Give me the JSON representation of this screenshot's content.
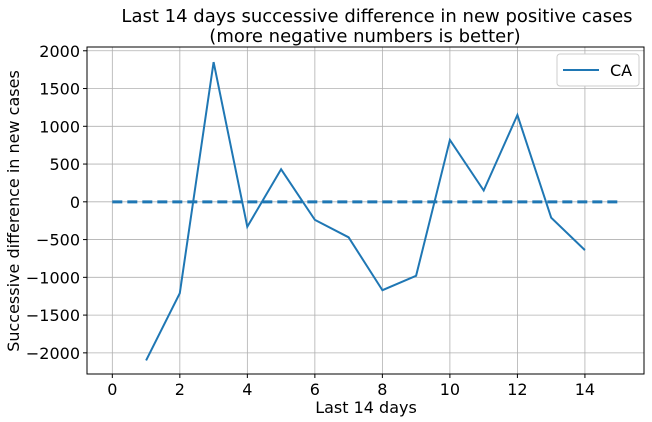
{
  "chart_data": {
    "type": "line",
    "title": "Last 14 days successive difference in new positive cases",
    "subtitle": "(more negative numbers is better)",
    "xlabel": "Last 14 days",
    "ylabel": "Successive difference in new cases",
    "xlim": [
      -0.75,
      15.75
    ],
    "ylim": [
      -2280,
      2050
    ],
    "xticks": [
      0,
      2,
      4,
      6,
      8,
      10,
      12,
      14
    ],
    "yticks": [
      -2000,
      -1500,
      -1000,
      -500,
      0,
      500,
      1000,
      1500,
      2000
    ],
    "grid": true,
    "legend_position": "top-right",
    "series": [
      {
        "name": "CA",
        "color": "#1f77b4",
        "x": [
          1,
          2,
          3,
          4,
          5,
          6,
          7,
          8,
          9,
          10,
          11,
          12,
          13,
          14
        ],
        "values": [
          -2100,
          -1210,
          1850,
          -330,
          430,
          -240,
          -470,
          -1170,
          -980,
          820,
          150,
          1150,
          -210,
          -640
        ]
      }
    ],
    "reference_line": {
      "style": "dashed",
      "color": "#1f77b4",
      "y": 0,
      "x_range": [
        0,
        15
      ]
    }
  }
}
